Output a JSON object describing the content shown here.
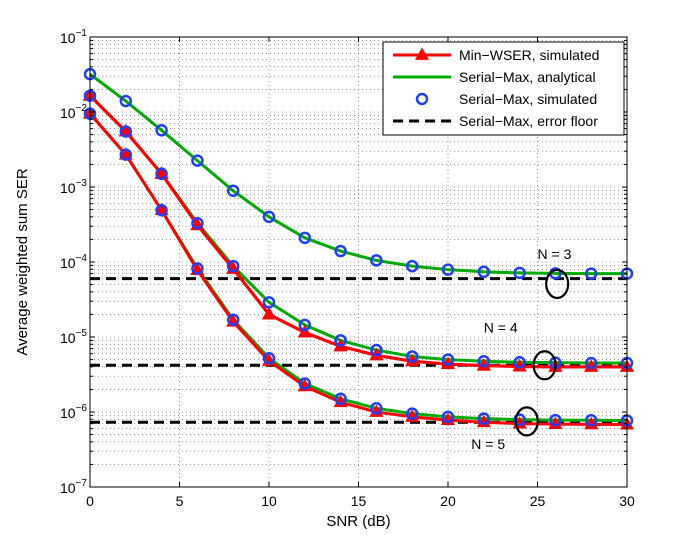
{
  "chart_data": {
    "type": "line",
    "title": "",
    "xlabel": "SNR (dB)",
    "ylabel": "Average weighted sum SER",
    "xlim": [
      0,
      30
    ],
    "ylim": [
      1e-07,
      0.1
    ],
    "yscale": "log",
    "grid": true,
    "x_ticks": [
      0,
      5,
      10,
      15,
      20,
      25,
      30
    ],
    "y_tick_exponents": [
      -7,
      -6,
      -5,
      -4,
      -3,
      -2,
      -1
    ],
    "y_tick_base": "10",
    "legend_position": "top-right",
    "legend": [
      {
        "label": "Min−WSER, simulated",
        "style": "red-line-triangle"
      },
      {
        "label": "Serial−Max, analytical",
        "style": "green-line"
      },
      {
        "label": "Serial−Max, simulated",
        "style": "blue-circle"
      },
      {
        "label": "Serial−Max, error floor",
        "style": "black-dashed"
      }
    ],
    "colors": {
      "min_wser": "#ff0000",
      "analytical": "#00aa00",
      "simulated": "#1f3fff",
      "floor": "#000000"
    },
    "series": [
      {
        "name": "Min−WSER, simulated",
        "group": "N = 3",
        "style": "red-line-triangle",
        "x": [
          0,
          2,
          4,
          6,
          8,
          10,
          12,
          14,
          16,
          18,
          20,
          22,
          24,
          26,
          28,
          30
        ],
        "y": [
          0.0165,
          0.0055,
          0.0015,
          0.00031,
          8.1e-05,
          2e-05,
          1.15e-05,
          7.5e-06,
          5.7e-06,
          4.75e-06,
          4.35e-06,
          4.15e-06,
          4.05e-06,
          4e-06,
          4e-06,
          4e-06
        ]
      },
      {
        "name": "Serial−Max, analytical",
        "group": "N = 3",
        "style": "green-line",
        "x": [
          0,
          2,
          4,
          6,
          8,
          10,
          12,
          14,
          16,
          18,
          20,
          22,
          24,
          26,
          28,
          30
        ],
        "y": [
          0.032,
          0.014,
          0.0057,
          0.00225,
          0.00089,
          0.0004,
          0.00021,
          0.00014,
          0.000105,
          8.8e-05,
          7.9e-05,
          7.4e-05,
          7.15e-05,
          7.05e-05,
          7e-05,
          7e-05
        ]
      },
      {
        "name": "Serial−Max, simulated",
        "group": "N = 3",
        "style": "blue-circle",
        "x": [
          0,
          2,
          4,
          6,
          8,
          10,
          12,
          14,
          16,
          18,
          20,
          22,
          24,
          26,
          28,
          30
        ],
        "y": [
          0.032,
          0.014,
          0.0057,
          0.00225,
          0.00089,
          0.0004,
          0.00021,
          0.00014,
          0.000105,
          8.8e-05,
          7.9e-05,
          7.4e-05,
          7.15e-05,
          7.05e-05,
          7e-05,
          7e-05
        ]
      },
      {
        "name": "Min−WSER, simulated",
        "group": "N = 4",
        "style": "red-line-triangle",
        "x": [
          0,
          2,
          4,
          6,
          8,
          10,
          12,
          14,
          16,
          18,
          20,
          22,
          24,
          26,
          28,
          30
        ],
        "y": [
          0.0165,
          0.0055,
          0.0015,
          0.00031,
          8.1e-05,
          2e-05,
          1.15e-05,
          7.5e-06,
          5.7e-06,
          4.75e-06,
          4.35e-06,
          4.15e-06,
          4.05e-06,
          4e-06,
          4e-06,
          4e-06
        ]
      },
      {
        "name": "Serial−Max, analytical",
        "group": "N = 4",
        "style": "green-line",
        "x": [
          0,
          2,
          4,
          6,
          8,
          10,
          12,
          14,
          16,
          18,
          20,
          22,
          24,
          26,
          28,
          30
        ],
        "y": [
          0.0165,
          0.0055,
          0.0015,
          0.00033,
          8.8e-05,
          2.9e-05,
          1.45e-05,
          9e-06,
          6.7e-06,
          5.5e-06,
          5e-06,
          4.75e-06,
          4.6e-06,
          4.55e-06,
          4.5e-06,
          4.5e-06
        ]
      },
      {
        "name": "Serial−Max, simulated",
        "group": "N = 4",
        "style": "blue-circle",
        "x": [
          0,
          2,
          4,
          6,
          8,
          10,
          12,
          14,
          16,
          18,
          20,
          22,
          24,
          26,
          28,
          30
        ],
        "y": [
          0.0165,
          0.0055,
          0.0015,
          0.00033,
          8.8e-05,
          2.9e-05,
          1.45e-05,
          9e-06,
          6.7e-06,
          5.5e-06,
          5e-06,
          4.75e-06,
          4.6e-06,
          4.55e-06,
          4.5e-06,
          4.5e-06
        ]
      },
      {
        "name": "Min−WSER, simulated",
        "group": "N = 5",
        "style": "red-line-triangle",
        "x": [
          0,
          2,
          4,
          6,
          8,
          10,
          12,
          14,
          16,
          18,
          20,
          22,
          24,
          26,
          28,
          30
        ],
        "y": [
          0.0095,
          0.0027,
          0.00049,
          7.8e-05,
          1.6e-05,
          4.8e-06,
          2.2e-06,
          1.35e-06,
          1e-06,
          8.6e-07,
          7.8e-07,
          7.3e-07,
          7e-07,
          6.9e-07,
          6.85e-07,
          6.8e-07
        ]
      },
      {
        "name": "Serial−Max, analytical",
        "group": "N = 5",
        "style": "green-line",
        "x": [
          0,
          2,
          4,
          6,
          8,
          10,
          12,
          14,
          16,
          18,
          20,
          22,
          24,
          26,
          28,
          30
        ],
        "y": [
          0.0095,
          0.0027,
          0.00049,
          8.2e-05,
          1.7e-05,
          5.2e-06,
          2.4e-06,
          1.5e-06,
          1.12e-06,
          9.5e-07,
          8.6e-07,
          8.15e-07,
          7.9e-07,
          7.8e-07,
          7.75e-07,
          7.7e-07
        ]
      },
      {
        "name": "Serial−Max, simulated",
        "group": "N = 5",
        "style": "blue-circle",
        "x": [
          0,
          2,
          4,
          6,
          8,
          10,
          12,
          14,
          16,
          18,
          20,
          22,
          24,
          26,
          28,
          30
        ],
        "y": [
          0.0095,
          0.0027,
          0.00049,
          8.2e-05,
          1.7e-05,
          5.2e-06,
          2.4e-06,
          1.5e-06,
          1.12e-06,
          9.5e-07,
          8.6e-07,
          8.15e-07,
          7.9e-07,
          7.8e-07,
          7.75e-07,
          7.7e-07
        ]
      }
    ],
    "error_floors": [
      {
        "group": "N = 3",
        "y": 6e-05
      },
      {
        "group": "N = 4",
        "y": 4.2e-06
      },
      {
        "group": "N = 5",
        "y": 7.3e-07
      }
    ],
    "annotations": [
      {
        "text": "N = 3",
        "x": 25,
        "y": 0.00011,
        "ellipse_x": 26.1,
        "ellipse_y": 5.1e-05
      },
      {
        "text": "N = 4",
        "x": 22,
        "y": 1.15e-05,
        "ellipse_x": 25.4,
        "ellipse_y": 4.2e-06
      },
      {
        "text": "N = 5",
        "x": 21.3,
        "y": 3.2e-07,
        "ellipse_x": 24.4,
        "ellipse_y": 7.5e-07
      }
    ]
  }
}
